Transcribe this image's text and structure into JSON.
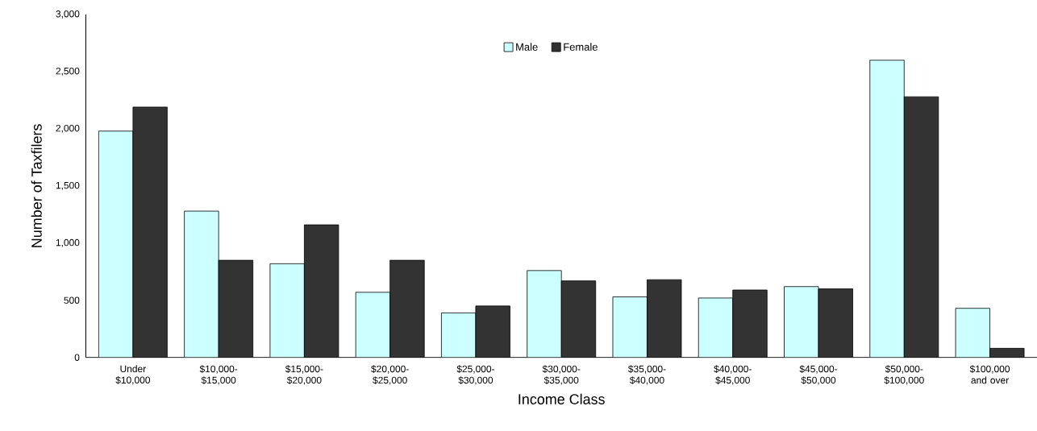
{
  "chart_data": {
    "type": "bar",
    "xlabel": "Income Class",
    "ylabel": "Number of Taxfilers",
    "categories": [
      "Under $10,000",
      "$10,000-$15,000",
      "$15,000-$20,000",
      "$20,000-$25,000",
      "$25,000-$30,000",
      "$30,000-$35,000",
      "$35,000-$40,000",
      "$40,000-$45,000",
      "$45,000-$50,000",
      "$50,000-$100,000",
      "$100,000 and over"
    ],
    "series": [
      {
        "name": "Male",
        "color": "#ccffff",
        "values": [
          1980,
          1280,
          820,
          570,
          390,
          760,
          530,
          520,
          620,
          2600,
          430
        ]
      },
      {
        "name": "Female",
        "color": "#333333",
        "values": [
          2190,
          850,
          1160,
          850,
          450,
          670,
          680,
          590,
          600,
          2280,
          80
        ]
      }
    ],
    "ylim": [
      0,
      3000
    ],
    "yticks": [
      0,
      500,
      {
        "value": 1000,
        "label": "1,000"
      },
      {
        "value": 1500,
        "label": "1,500"
      },
      {
        "value": 2000,
        "label": "2,000"
      },
      {
        "value": 2500,
        "label": "2,500"
      },
      {
        "value": 3000,
        "label": "3,000"
      }
    ],
    "legend": "top"
  }
}
